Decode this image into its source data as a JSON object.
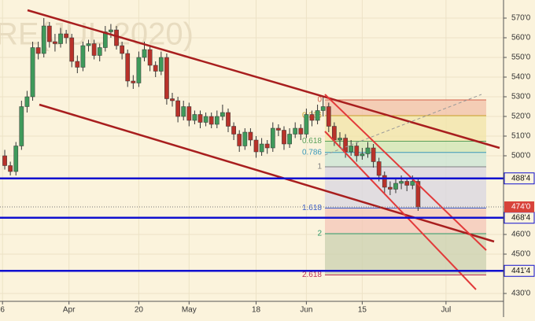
{
  "chart_data": {
    "type": "candlestick",
    "watermark": "RE(JUL 2020)",
    "colors": {
      "up": "#3f9a5b",
      "down": "#b8322a",
      "hline": "#1010d0",
      "last": "#d8433a",
      "trend": "#a81e1e",
      "channel": "#e23a3a"
    },
    "xlim": [
      -0.85,
      89.3
    ],
    "xticks": [
      {
        "value": -0.4,
        "label": "6"
      },
      {
        "value": 11.5,
        "label": "Apr"
      },
      {
        "value": 24,
        "label": "20"
      },
      {
        "value": 33,
        "label": "May"
      },
      {
        "value": 45,
        "label": "18"
      },
      {
        "value": 54,
        "label": "Jun"
      },
      {
        "value": 64,
        "label": "15"
      },
      {
        "value": 79,
        "label": "Jul"
      }
    ],
    "ylim": [
      426,
      579.2
    ],
    "yticks": [
      {
        "value": 430,
        "label": "430'0"
      },
      {
        "value": 450,
        "label": "450'0"
      },
      {
        "value": 460,
        "label": "460'0"
      },
      {
        "value": 500,
        "label": "500'0"
      },
      {
        "value": 510,
        "label": "510'0"
      },
      {
        "value": 520,
        "label": "520'0"
      },
      {
        "value": 530,
        "label": "530'0"
      },
      {
        "value": 540,
        "label": "540'0"
      },
      {
        "value": 550,
        "label": "550'0"
      },
      {
        "value": 560,
        "label": "560'0"
      },
      {
        "value": 570,
        "label": "570'0"
      }
    ],
    "grid": true,
    "open": [
      500,
      495,
      492,
      505,
      525,
      530,
      555,
      552,
      566,
      558,
      557,
      562,
      560,
      548,
      545,
      556,
      557,
      551,
      555,
      563,
      564,
      556,
      552,
      538,
      537,
      550,
      554,
      546,
      543,
      550,
      529,
      528,
      520,
      525,
      518,
      521,
      517,
      520,
      516,
      520,
      522,
      515,
      511,
      505,
      512,
      508,
      502,
      506,
      504,
      514,
      513,
      506,
      511,
      514,
      511,
      521,
      518,
      523,
      525,
      515,
      508,
      509,
      502,
      505,
      500,
      501,
      504,
      497,
      490,
      484,
      483,
      486,
      487,
      485,
      487
    ],
    "high": [
      503,
      497,
      507,
      528,
      533,
      558,
      558,
      570,
      568,
      562,
      565,
      564,
      562,
      551,
      558,
      559,
      559,
      557,
      566,
      567,
      566,
      558,
      554,
      541,
      553,
      558,
      556,
      548,
      553,
      552,
      532,
      530,
      528,
      527,
      523,
      523,
      522,
      522,
      523,
      526,
      524,
      517,
      513,
      514,
      514,
      510,
      509,
      508,
      517,
      516,
      515,
      514,
      517,
      516,
      524,
      523,
      526,
      530,
      527,
      517,
      512,
      511,
      508,
      507,
      504,
      507,
      506,
      499,
      492,
      487,
      489,
      490,
      489,
      490,
      489
    ],
    "low": [
      493,
      490,
      490,
      503,
      522,
      528,
      549,
      550,
      555,
      553,
      555,
      557,
      545,
      542,
      543,
      553,
      549,
      548,
      553,
      560,
      554,
      549,
      535,
      534,
      535,
      548,
      543,
      540,
      541,
      526,
      525,
      517,
      518,
      515,
      516,
      514,
      515,
      514,
      514,
      518,
      512,
      508,
      502,
      503,
      505,
      499,
      500,
      501,
      502,
      510,
      503,
      504,
      509,
      508,
      509,
      515,
      516,
      520,
      512,
      505,
      505,
      499,
      500,
      497,
      498,
      499,
      494,
      487,
      481,
      480,
      481,
      483,
      482,
      483,
      472
    ],
    "close": [
      495,
      492,
      505,
      525,
      530,
      555,
      552,
      566,
      558,
      557,
      562,
      560,
      548,
      545,
      556,
      557,
      551,
      555,
      563,
      564,
      556,
      552,
      538,
      537,
      550,
      554,
      546,
      543,
      550,
      529,
      528,
      520,
      525,
      518,
      521,
      517,
      520,
      516,
      520,
      522,
      515,
      511,
      505,
      512,
      508,
      502,
      506,
      504,
      514,
      513,
      506,
      511,
      514,
      511,
      521,
      518,
      523,
      525,
      515,
      508,
      509,
      502,
      505,
      500,
      501,
      504,
      497,
      490,
      484,
      483,
      486,
      487,
      485,
      487,
      474
    ],
    "hlines": [
      {
        "value": 488.5,
        "label": "488'4"
      },
      {
        "value": 468.5,
        "label": "468'4"
      },
      {
        "value": 441.5,
        "label": "441'4"
      }
    ],
    "last_price": {
      "value": 474,
      "label": "474'0"
    },
    "fib": {
      "high": 528.4,
      "low": 494.4,
      "levels": [
        0,
        0.236,
        0.618,
        0.786,
        1,
        1.618,
        2,
        2.618
      ],
      "colors": [
        "#d4604a",
        "#c9a028",
        "#5aa05a",
        "#3a98b8",
        "#808080",
        "#3d5fc8",
        "#2f9a6a",
        "#c0305a"
      ],
      "fills": [
        "#f2c0a8",
        "#f1e4a8",
        "#cfe6b4",
        "#c9e4d6",
        "#d8d6e2",
        "#f4c6b8",
        "#cbd0b0"
      ]
    }
  }
}
